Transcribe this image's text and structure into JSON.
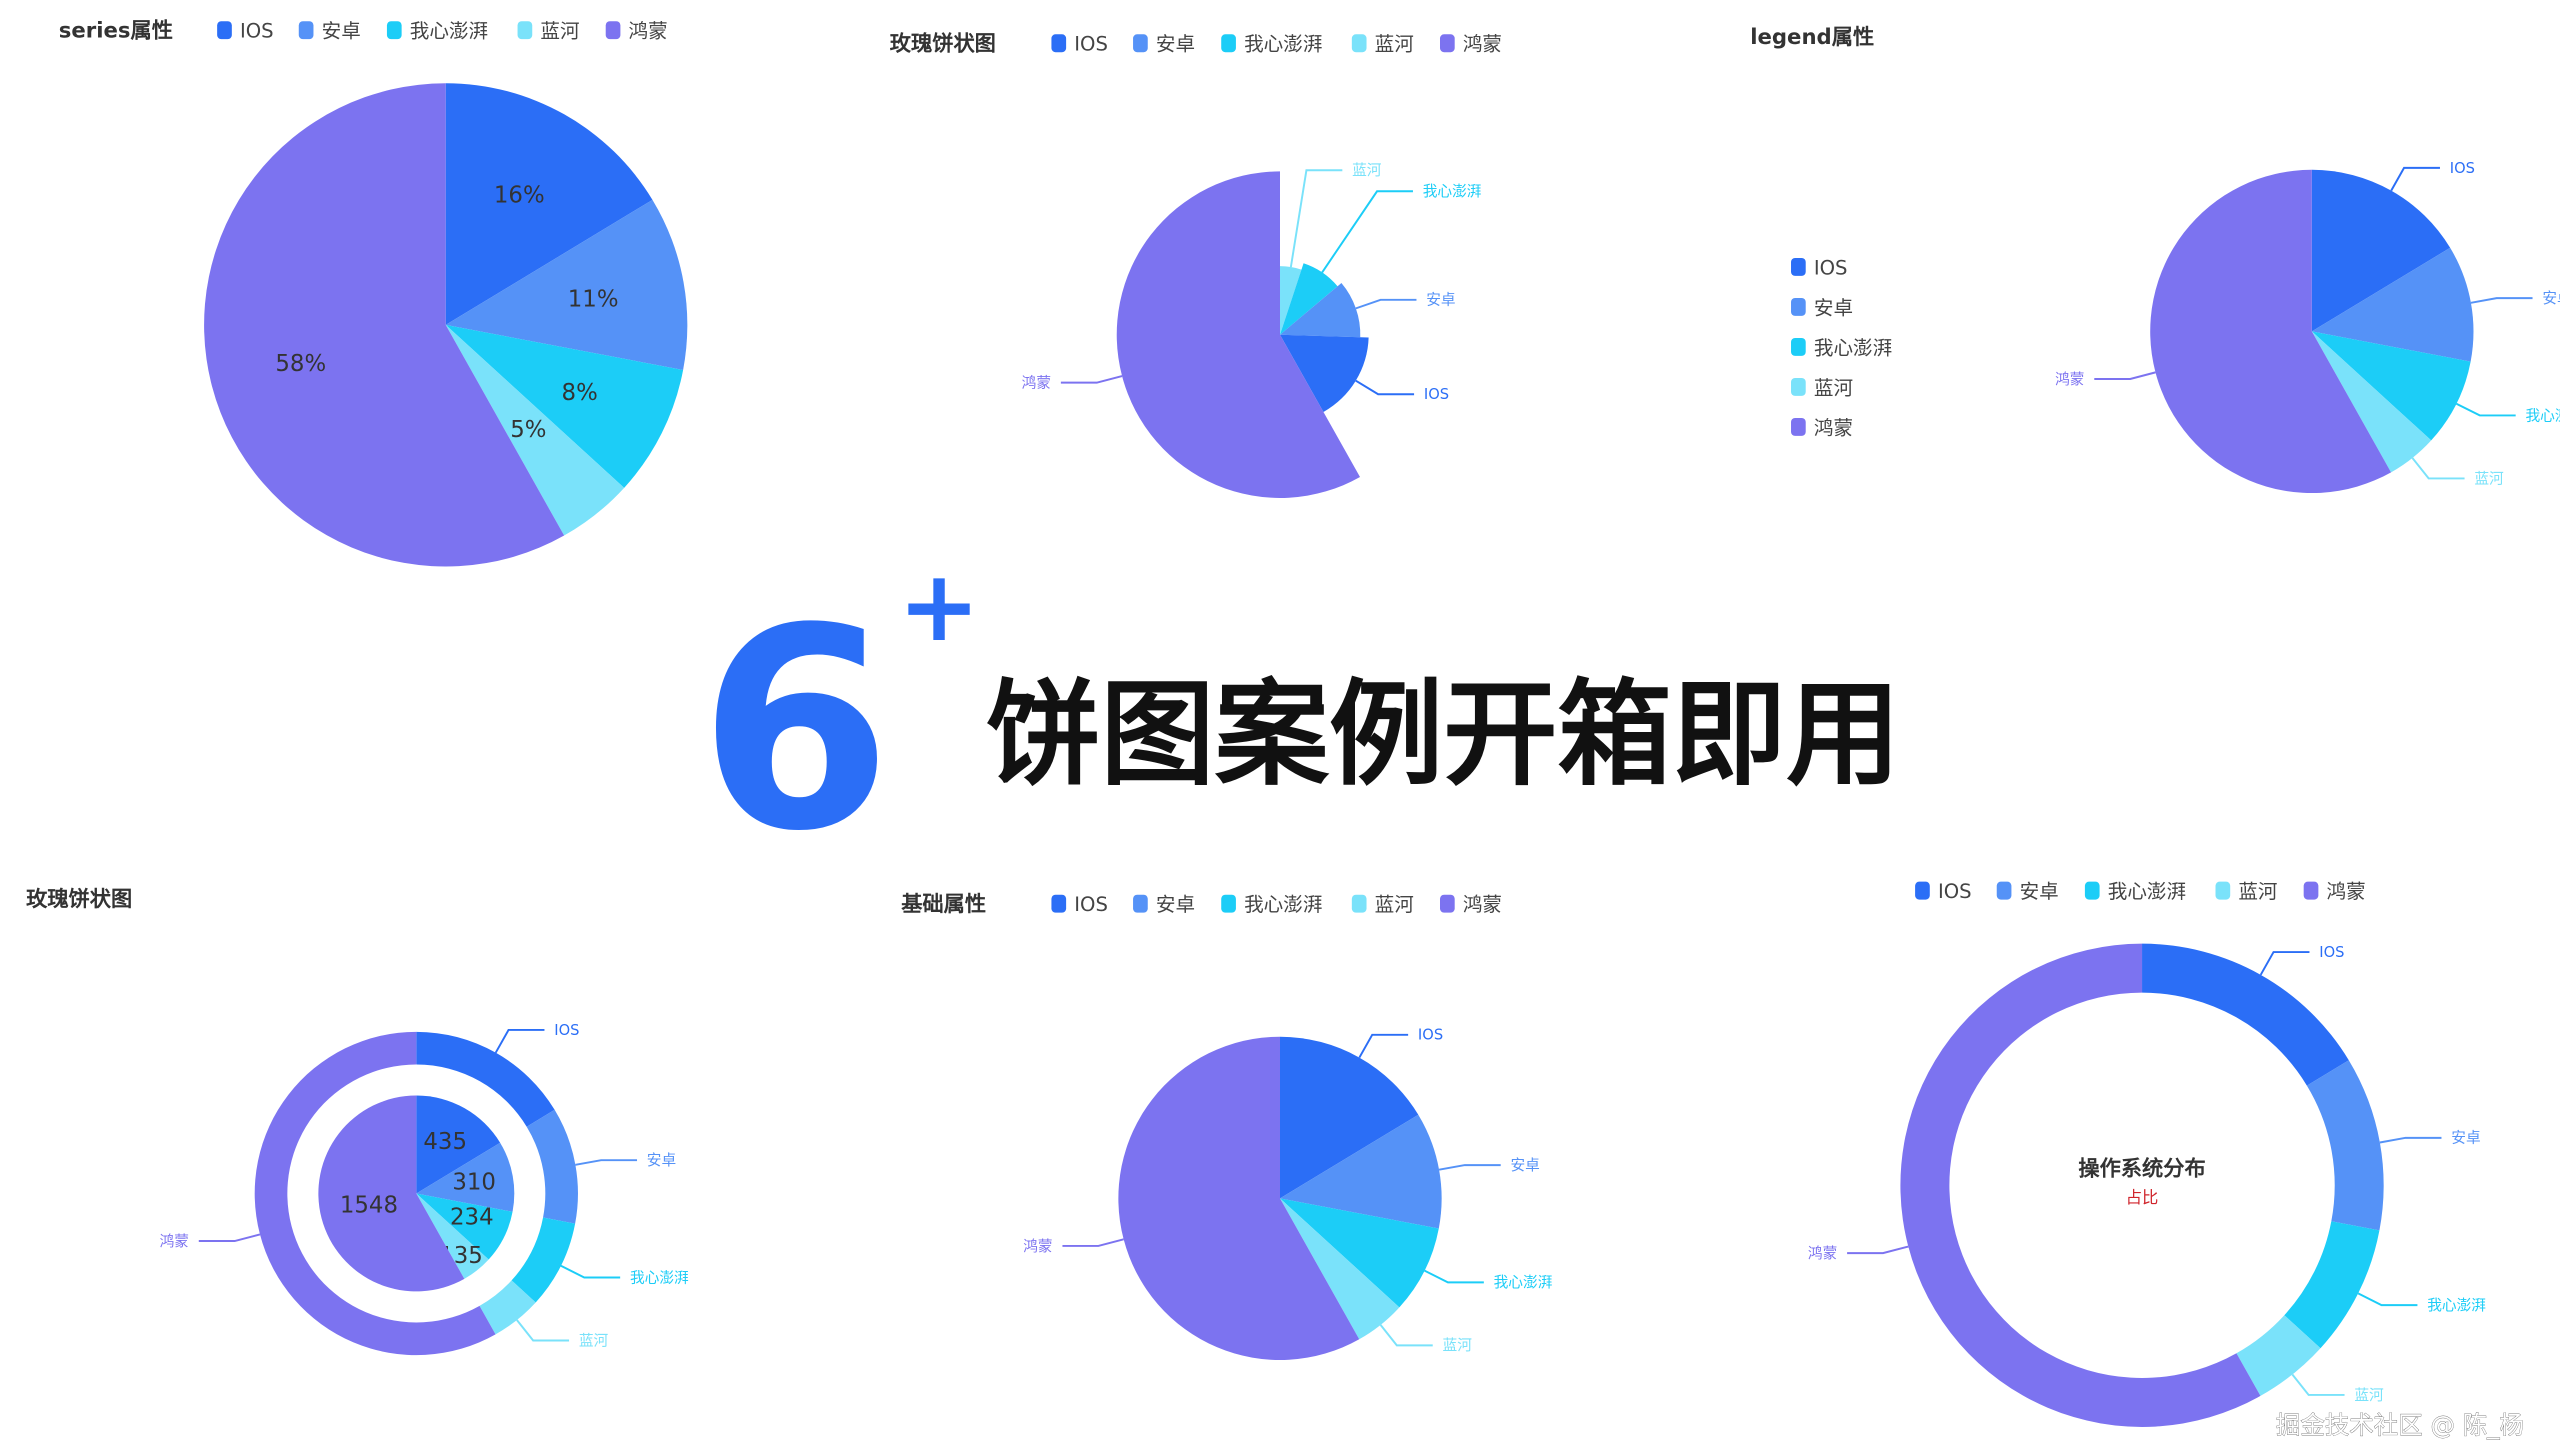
{
  "colors": {
    "IOS": "#2b6ef6",
    "安卓": "#5592f7",
    "我心澎湃": "#1ccdf7",
    "蓝河": "#7ae2fa",
    "鸿蒙": "#7c73f0"
  },
  "legend_items": [
    "IOS",
    "安卓",
    "我心澎湃",
    "蓝河",
    "鸿蒙"
  ],
  "headline": {
    "number": "6",
    "plus": "+",
    "text": "饼图案例开箱即用"
  },
  "watermark": "掘金技术社区 @ 陈_杨",
  "chart_data": [
    {
      "type": "pie",
      "title": "series属性",
      "legend": "top-horizontal",
      "label_mode": "percent-inside",
      "categories": [
        "IOS",
        "安卓",
        "我心澎湃",
        "蓝河",
        "鸿蒙"
      ],
      "values": [
        435,
        310,
        234,
        135,
        1548
      ],
      "percent_labels": [
        "16%",
        "11%",
        "8%",
        "5%",
        "58%"
      ]
    },
    {
      "type": "pie",
      "rose_type": "radius",
      "title": "玫瑰饼状图",
      "legend": "top-horizontal",
      "label_mode": "outside",
      "categories": [
        "蓝河",
        "我心澎湃",
        "安卓",
        "IOS",
        "鸿蒙"
      ],
      "values": [
        135,
        234,
        310,
        435,
        1548
      ]
    },
    {
      "type": "pie",
      "title": "legend属性",
      "legend": "left-vertical",
      "label_mode": "outside",
      "categories": [
        "IOS",
        "安卓",
        "我心澎湃",
        "蓝河",
        "鸿蒙"
      ],
      "values": [
        435,
        310,
        234,
        135,
        1548
      ]
    },
    {
      "type": "pie",
      "title": "玫瑰饼状图",
      "legend": "none",
      "label_mode": "nested",
      "categories": [
        "IOS",
        "安卓",
        "我心澎湃",
        "蓝河",
        "鸿蒙"
      ],
      "values": [
        435,
        310,
        234,
        135,
        1548
      ],
      "value_labels": [
        "435",
        "310",
        "234",
        "135",
        "1548"
      ]
    },
    {
      "type": "pie",
      "title": "基础属性",
      "legend": "top-horizontal",
      "label_mode": "outside",
      "categories": [
        "IOS",
        "安卓",
        "我心澎湃",
        "蓝河",
        "鸿蒙"
      ],
      "values": [
        435,
        310,
        234,
        135,
        1548
      ]
    },
    {
      "type": "pie",
      "donut": true,
      "title": "",
      "legend": "top-horizontal",
      "label_mode": "outside",
      "center_title": "操作系统分布",
      "center_subtitle": "占比",
      "center_subtitle_color": "#d0242b",
      "categories": [
        "IOS",
        "安卓",
        "我心澎湃",
        "蓝河",
        "鸿蒙"
      ],
      "values": [
        435,
        310,
        234,
        135,
        1548
      ]
    }
  ]
}
